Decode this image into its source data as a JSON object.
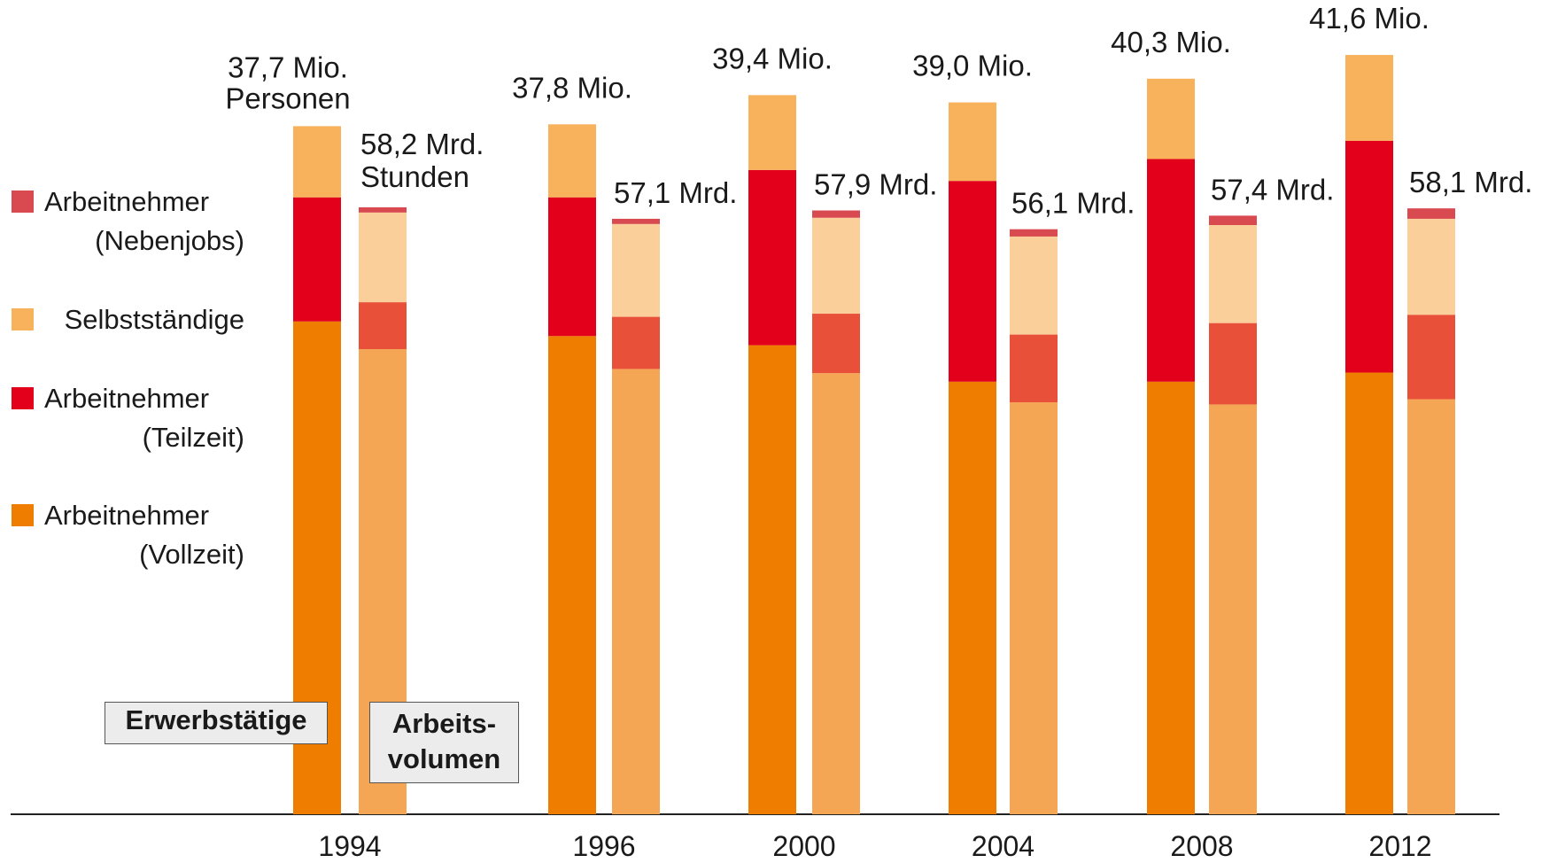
{
  "chart_data": {
    "type": "grouped_stacked_bar",
    "categories": [
      "1994",
      "1996",
      "2000",
      "2004",
      "2008",
      "2012"
    ],
    "series": [
      {
        "name": "Arbeitnehmer (Vollzeit)",
        "color": "#ef7d00",
        "hours_color": "#f4a654",
        "persons": [
          27.0,
          26.2,
          25.7,
          23.7,
          23.7,
          24.2
        ],
        "hours": [
          44.6,
          42.7,
          42.3,
          39.5,
          39.3,
          39.8
        ]
      },
      {
        "name": "Arbeitnehmer (Teilzeit)",
        "color": "#e2001a",
        "hours_color": "#e8503a",
        "persons": [
          6.8,
          7.6,
          9.6,
          11.0,
          12.2,
          12.7
        ],
        "hours": [
          4.5,
          5.0,
          5.7,
          6.5,
          7.8,
          8.1
        ]
      },
      {
        "name": "Selbstständige",
        "color": "#f7b25b",
        "hours_color": "#fbcf9a",
        "persons": [
          3.9,
          4.0,
          4.1,
          4.3,
          4.4,
          4.7
        ],
        "hours": [
          8.6,
          8.9,
          9.2,
          9.4,
          9.4,
          9.2
        ]
      },
      {
        "name": "Arbeitnehmer (Nebenjobs)",
        "color": "#d84a4f",
        "hours_color": "#d84a4f",
        "hours": [
          0.5,
          0.5,
          0.7,
          0.7,
          0.9,
          1.0
        ]
      }
    ],
    "persons": {
      "name": "Erwerbstätige",
      "totals": [
        37.7,
        37.8,
        39.4,
        39.0,
        40.3,
        41.6
      ],
      "value_labels": [
        "37,7 Mio.",
        "37,8 Mio.",
        "39,4 Mio.",
        "39,0 Mio.",
        "40,3 Mio.",
        "41,6 Mio."
      ],
      "unit_label": "Personen"
    },
    "hours": {
      "name": "Arbeits-volumen",
      "totals": [
        58.2,
        57.1,
        57.9,
        56.1,
        57.4,
        58.1
      ],
      "value_labels": [
        "58,2 Mrd.",
        "57,1 Mrd.",
        "57,9 Mrd.",
        "56,1 Mrd.",
        "57,4 Mrd.",
        "58,1 Mrd."
      ],
      "unit_label": "Stunden"
    }
  }
}
